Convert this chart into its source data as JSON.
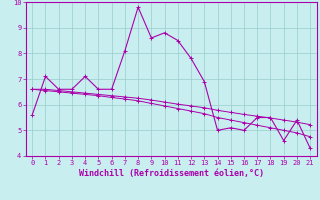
{
  "xlabel": "Windchill (Refroidissement éolien,°C)",
  "x": [
    0,
    1,
    2,
    3,
    4,
    5,
    6,
    7,
    8,
    9,
    10,
    11,
    12,
    13,
    14,
    15,
    16,
    17,
    18,
    19,
    20,
    21
  ],
  "y_jagged": [
    5.6,
    7.1,
    6.6,
    6.6,
    7.1,
    6.6,
    6.6,
    8.1,
    9.8,
    8.6,
    8.8,
    8.5,
    7.8,
    6.9,
    5.0,
    5.1,
    5.0,
    5.5,
    5.5,
    4.6,
    5.4,
    4.3
  ],
  "y_linear1": [
    6.6,
    6.55,
    6.5,
    6.45,
    6.4,
    6.35,
    6.28,
    6.22,
    6.15,
    6.05,
    5.95,
    5.85,
    5.75,
    5.65,
    5.5,
    5.4,
    5.3,
    5.2,
    5.1,
    5.0,
    4.9,
    4.75
  ],
  "y_linear2": [
    6.6,
    6.6,
    6.55,
    6.5,
    6.45,
    6.4,
    6.35,
    6.3,
    6.25,
    6.18,
    6.1,
    6.02,
    5.95,
    5.88,
    5.78,
    5.7,
    5.62,
    5.55,
    5.48,
    5.4,
    5.32,
    5.22
  ],
  "line_color": "#aa00aa",
  "bg_color": "#c8eef0",
  "grid_color": "#99cccc",
  "ylim": [
    4,
    10
  ],
  "xlim": [
    -0.5,
    21.5
  ],
  "yticks": [
    4,
    5,
    6,
    7,
    8,
    9,
    10
  ],
  "xticks": [
    0,
    1,
    2,
    3,
    4,
    5,
    6,
    7,
    8,
    9,
    10,
    11,
    12,
    13,
    14,
    15,
    16,
    17,
    18,
    19,
    20,
    21
  ],
  "tick_fontsize": 5,
  "xlabel_fontsize": 6,
  "marker_size": 2.5,
  "lw_jagged": 0.8,
  "lw_linear": 0.7
}
